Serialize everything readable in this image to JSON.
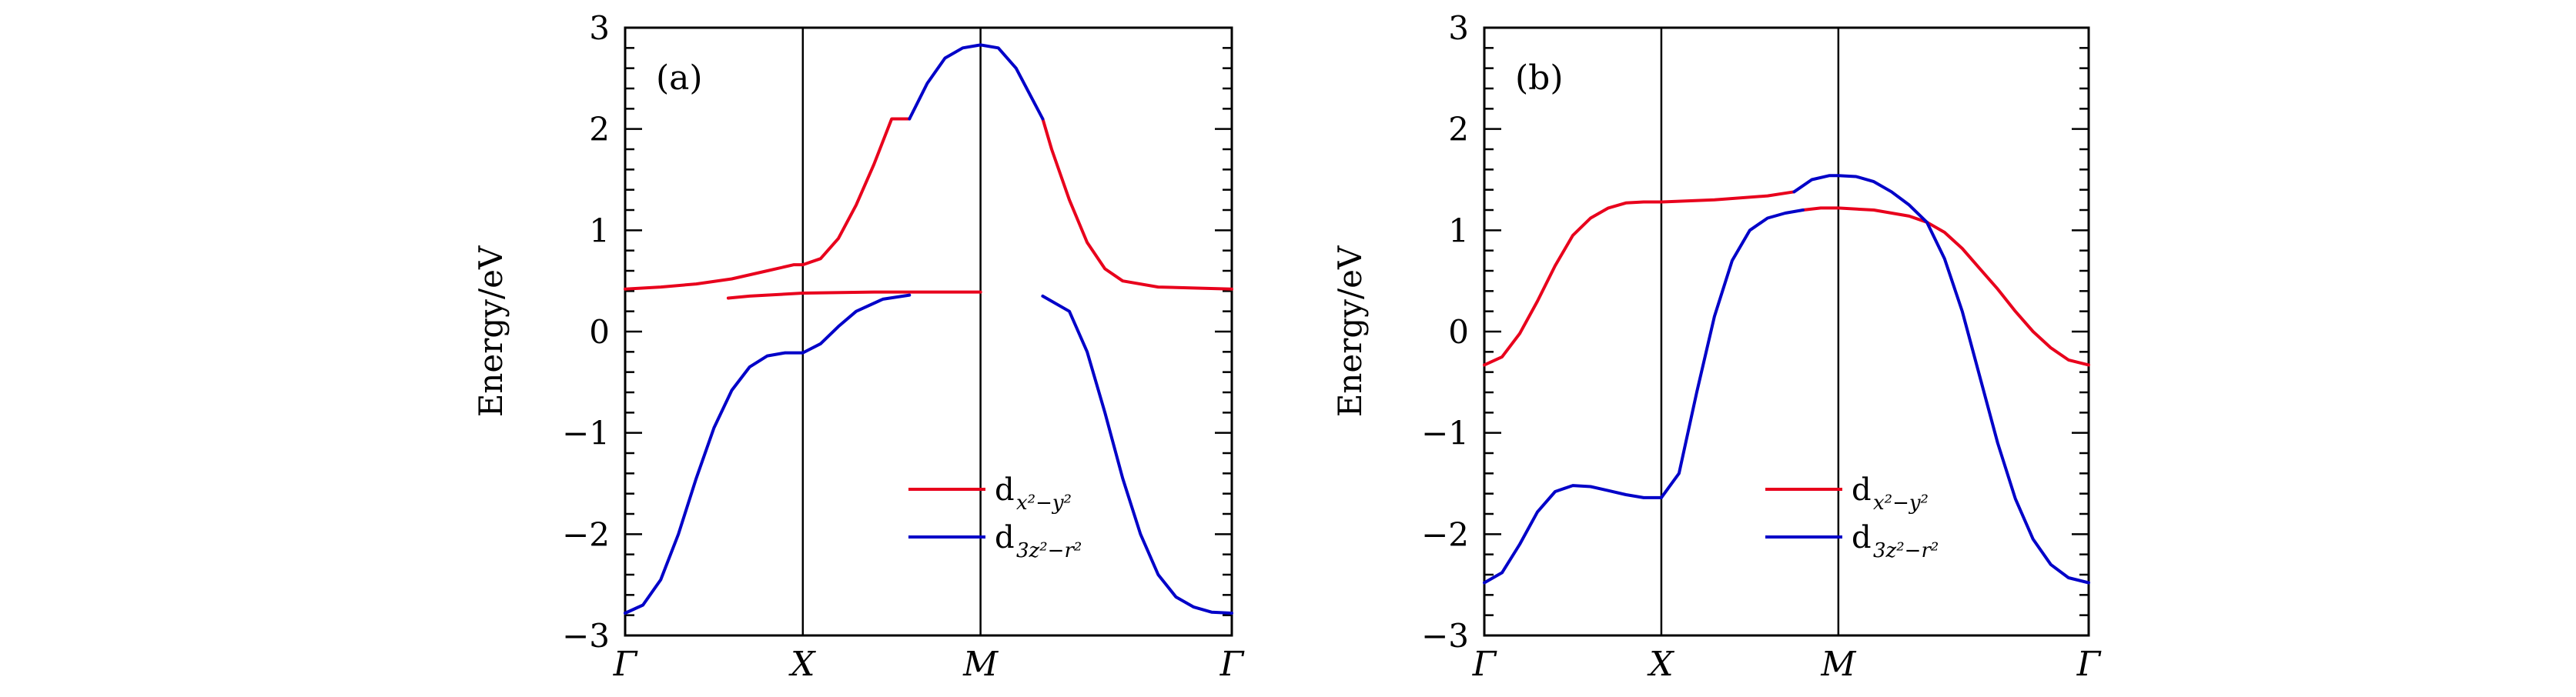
{
  "chart_data": [
    {
      "type": "line",
      "panel_label": "(a)",
      "ylabel": "Energy/eV",
      "ylim": [
        -3,
        3
      ],
      "yticks": [
        -3,
        -2,
        -1,
        0,
        1,
        2,
        3
      ],
      "ytick_labels": [
        "−3",
        "−2",
        "−1",
        "0",
        "1",
        "2",
        "3"
      ],
      "x_ticks": [
        {
          "label": "Γ",
          "pos": 0
        },
        {
          "label": "X",
          "pos": 1
        },
        {
          "label": "M",
          "pos": 2
        },
        {
          "label": "Γ",
          "pos": 3.414
        }
      ],
      "vlines_at_pos": [
        1,
        2
      ],
      "legend_position": "lower-right",
      "legend": [
        {
          "label": "d",
          "sub": "x²−y²",
          "color": "#e8001c"
        },
        {
          "label": "d",
          "sub": "3z²−r²",
          "color": "#0000c8"
        }
      ],
      "series": [
        {
          "label": "d",
          "sub": "x²−y²",
          "color": "#e8001c",
          "segments": [
            {
              "x": [
                0,
                0.2,
                0.4,
                0.6,
                0.8,
                0.95,
                1.0
              ],
              "y": [
                0.42,
                0.44,
                0.47,
                0.52,
                0.6,
                0.66,
                0.66
              ]
            },
            {
              "x": [
                1.0,
                1.1,
                1.2,
                1.3,
                1.4,
                1.5,
                1.6
              ],
              "y": [
                0.66,
                0.72,
                0.92,
                1.25,
                1.65,
                2.1,
                2.1
              ]
            },
            {
              "x": [
                2.35,
                2.4,
                2.5,
                2.6,
                2.7,
                2.8,
                3.0,
                3.2,
                3.414
              ],
              "y": [
                2.1,
                1.8,
                1.3,
                0.88,
                0.62,
                0.5,
                0.44,
                0.43,
                0.42
              ]
            },
            {
              "x": [
                0.58,
                0.7,
                1.0,
                1.4,
                1.8,
                2.0
              ],
              "y": [
                0.33,
                0.35,
                0.38,
                0.39,
                0.39,
                0.39
              ]
            }
          ]
        },
        {
          "label": "d",
          "sub": "3z²−r²",
          "color": "#0000c8",
          "segments": [
            {
              "x": [
                0,
                0.1,
                0.2,
                0.3,
                0.4,
                0.5,
                0.6,
                0.7,
                0.8,
                0.9,
                1.0
              ],
              "y": [
                -2.78,
                -2.7,
                -2.45,
                -2.0,
                -1.45,
                -0.95,
                -0.58,
                -0.35,
                -0.24,
                -0.21,
                -0.21
              ]
            },
            {
              "x": [
                1.0,
                1.1,
                1.2,
                1.3,
                1.45,
                1.6
              ],
              "y": [
                -0.21,
                -0.12,
                0.05,
                0.2,
                0.32,
                0.36
              ]
            },
            {
              "x": [
                1.6,
                1.7,
                1.8,
                1.9,
                2.0,
                2.1,
                2.2,
                2.35
              ],
              "y": [
                2.1,
                2.45,
                2.7,
                2.8,
                2.83,
                2.8,
                2.6,
                2.1
              ]
            },
            {
              "x": [
                2.35,
                2.5,
                2.6,
                2.7,
                2.8,
                2.9,
                3.0,
                3.1,
                3.2,
                3.3,
                3.414
              ],
              "y": [
                0.35,
                0.2,
                -0.2,
                -0.8,
                -1.45,
                -2.0,
                -2.4,
                -2.62,
                -2.72,
                -2.77,
                -2.78
              ]
            }
          ]
        }
      ]
    },
    {
      "type": "line",
      "panel_label": "(b)",
      "ylabel": "Energy/eV",
      "ylim": [
        -3,
        3
      ],
      "yticks": [
        -3,
        -2,
        -1,
        0,
        1,
        2,
        3
      ],
      "ytick_labels": [
        "−3",
        "−2",
        "−1",
        "0",
        "1",
        "2",
        "3"
      ],
      "x_ticks": [
        {
          "label": "Γ",
          "pos": 0
        },
        {
          "label": "X",
          "pos": 1
        },
        {
          "label": "M",
          "pos": 2
        },
        {
          "label": "Γ",
          "pos": 3.414
        }
      ],
      "vlines_at_pos": [
        1,
        2
      ],
      "legend_position": "lower-right",
      "legend": [
        {
          "label": "d",
          "sub": "x²−y²",
          "color": "#e8001c"
        },
        {
          "label": "d",
          "sub": "3z²−r²",
          "color": "#0000c8"
        }
      ],
      "series": [
        {
          "label": "d",
          "sub": "x²−y²",
          "color": "#e8001c",
          "segments": [
            {
              "x": [
                0,
                0.1,
                0.2,
                0.3,
                0.4,
                0.5,
                0.6,
                0.7,
                0.8,
                0.9,
                1.0,
                1.3,
                1.6,
                1.75
              ],
              "y": [
                -0.33,
                -0.25,
                -0.02,
                0.3,
                0.65,
                0.95,
                1.12,
                1.22,
                1.27,
                1.28,
                1.28,
                1.3,
                1.34,
                1.38
              ]
            },
            {
              "x": [
                1.8,
                1.9,
                2.0,
                2.2,
                2.4,
                2.5
              ],
              "y": [
                1.2,
                1.22,
                1.22,
                1.2,
                1.14,
                1.08
              ]
            },
            {
              "x": [
                2.5,
                2.6,
                2.7,
                2.8,
                2.9,
                3.0,
                3.1,
                3.2,
                3.3,
                3.414
              ],
              "y": [
                1.08,
                0.98,
                0.82,
                0.62,
                0.42,
                0.2,
                0.0,
                -0.16,
                -0.28,
                -0.33
              ]
            }
          ]
        },
        {
          "label": "d",
          "sub": "3z²−r²",
          "color": "#0000c8",
          "segments": [
            {
              "x": [
                0,
                0.1,
                0.2,
                0.3,
                0.4,
                0.5,
                0.6,
                0.7,
                0.8,
                0.9,
                1.0
              ],
              "y": [
                -2.48,
                -2.38,
                -2.1,
                -1.78,
                -1.58,
                -1.52,
                -1.53,
                -1.57,
                -1.61,
                -1.64,
                -1.64
              ]
            },
            {
              "x": [
                1.0,
                1.1,
                1.2,
                1.3,
                1.4,
                1.5,
                1.6,
                1.7,
                1.8
              ],
              "y": [
                -1.64,
                -1.4,
                -0.6,
                0.15,
                0.7,
                1.0,
                1.12,
                1.17,
                1.2
              ]
            },
            {
              "x": [
                1.75,
                1.85,
                1.95,
                2.0,
                2.1,
                2.2,
                2.3,
                2.4,
                2.5
              ],
              "y": [
                1.38,
                1.5,
                1.54,
                1.54,
                1.53,
                1.48,
                1.38,
                1.25,
                1.08
              ]
            },
            {
              "x": [
                2.5,
                2.6,
                2.7,
                2.8,
                2.9,
                3.0,
                3.1,
                3.2,
                3.3,
                3.414
              ],
              "y": [
                1.08,
                0.72,
                0.2,
                -0.45,
                -1.1,
                -1.65,
                -2.05,
                -2.3,
                -2.43,
                -2.48
              ]
            }
          ]
        }
      ]
    }
  ]
}
